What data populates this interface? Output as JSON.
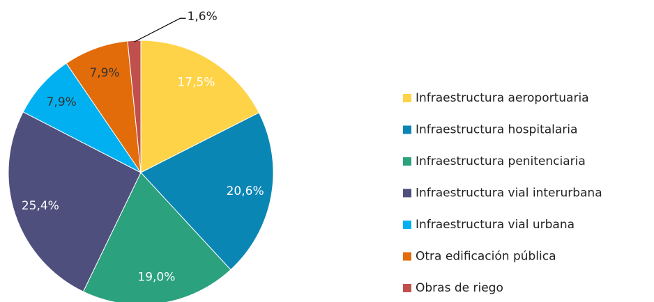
{
  "chart_data": {
    "type": "pie",
    "categories": [
      "Infraestructura aeroportuaria",
      "Infraestructura hospitalaria",
      "Infraestructura penitenciaria",
      "Infraestructura vial interurbana",
      "Infraestructura vial urbana",
      "Otra edificación pública",
      "Obras de riego"
    ],
    "values": [
      17.5,
      20.6,
      19.0,
      25.4,
      7.9,
      7.9,
      1.6
    ],
    "value_labels": [
      "17,5%",
      "20,6%",
      "19,0%",
      "25,4%",
      "7,9%",
      "7,9%",
      "1,6%"
    ],
    "colors": [
      "#FFD347",
      "#0A86B4",
      "#2BA17E",
      "#4F4F7D",
      "#00B0F0",
      "#E36C0A",
      "#C0504D"
    ],
    "legend": "right"
  }
}
